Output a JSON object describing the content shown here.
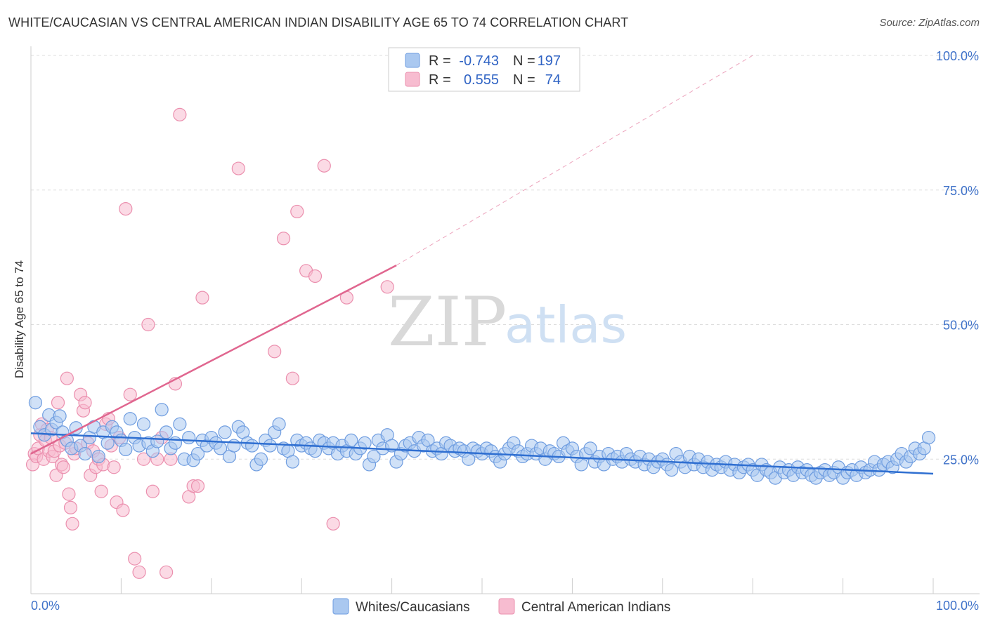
{
  "title": "WHITE/CAUCASIAN VS CENTRAL AMERICAN INDIAN DISABILITY AGE 65 TO 74 CORRELATION CHART",
  "source": "Source: ZipAtlas.com",
  "colors": {
    "blue_fill": "#aac8f0",
    "blue_stroke": "#6f9de0",
    "blue_line": "#2f6fd1",
    "pink_fill": "#f7bcd0",
    "pink_stroke": "#eb8fae",
    "pink_line": "#e0668f",
    "grid": "#dddddd",
    "tick": "#3f72c9"
  },
  "legend": {
    "rows": [
      {
        "r_label": "R =",
        "r_value": "-0.743",
        "n_label": "N =",
        "n_value": "197"
      },
      {
        "r_label": "R =",
        "r_value": "0.555",
        "n_label": "N =",
        "n_value": "74"
      }
    ]
  },
  "watermark": {
    "zip": "ZIP",
    "atlas": "atlas"
  },
  "chart_data": {
    "type": "scatter",
    "title": "WHITE/CAUCASIAN VS CENTRAL AMERICAN INDIAN DISABILITY AGE 65 TO 74 CORRELATION CHART",
    "xlabel": "",
    "ylabel": "Disability Age 65 to 74",
    "xlim": [
      0,
      100
    ],
    "ylim": [
      0,
      100
    ],
    "x_tick_labels": [
      "0.0%",
      "100.0%"
    ],
    "y_ticks": [
      {
        "value": 25,
        "label": "25.0%"
      },
      {
        "value": 50,
        "label": "50.0%"
      },
      {
        "value": 75,
        "label": "75.0%"
      },
      {
        "value": 100,
        "label": "100.0%"
      }
    ],
    "legend_position": "top-center",
    "series": [
      {
        "name": "Whites/Caucasians",
        "color": "#aac8f0",
        "trend": {
          "x": [
            0,
            100
          ],
          "y": [
            29.8,
            22.3
          ],
          "dashed_extension": false
        },
        "points": [
          [
            0.5,
            35.5
          ],
          [
            1.0,
            31.0
          ],
          [
            1.5,
            29.5
          ],
          [
            2.0,
            33.2
          ],
          [
            2.3,
            30.5
          ],
          [
            2.8,
            31.8
          ],
          [
            3.2,
            33.0
          ],
          [
            3.5,
            30.0
          ],
          [
            4.0,
            28.5
          ],
          [
            4.5,
            27.0
          ],
          [
            5.0,
            30.8
          ],
          [
            5.5,
            27.5
          ],
          [
            6.0,
            26.0
          ],
          [
            6.5,
            29.0
          ],
          [
            7.0,
            31.0
          ],
          [
            7.5,
            25.5
          ],
          [
            8.0,
            30.0
          ],
          [
            8.5,
            28.0
          ],
          [
            9.0,
            31.0
          ],
          [
            9.5,
            30.0
          ],
          [
            10.0,
            28.5
          ],
          [
            10.5,
            26.8
          ],
          [
            11.0,
            32.5
          ],
          [
            11.5,
            29.0
          ],
          [
            12.0,
            27.5
          ],
          [
            12.5,
            31.5
          ],
          [
            13.0,
            28.0
          ],
          [
            13.5,
            26.5
          ],
          [
            14.0,
            28.3
          ],
          [
            14.5,
            34.2
          ],
          [
            15.0,
            30.0
          ],
          [
            15.5,
            27.0
          ],
          [
            16.0,
            28.0
          ],
          [
            16.5,
            31.5
          ],
          [
            17.0,
            25.0
          ],
          [
            17.5,
            29.0
          ],
          [
            18.0,
            24.8
          ],
          [
            18.5,
            26.0
          ],
          [
            19.0,
            28.5
          ],
          [
            19.5,
            27.5
          ],
          [
            20.0,
            29.0
          ],
          [
            20.5,
            28.0
          ],
          [
            21.0,
            27.0
          ],
          [
            21.5,
            30.0
          ],
          [
            22.0,
            25.5
          ],
          [
            22.5,
            27.5
          ],
          [
            23.0,
            31.0
          ],
          [
            23.5,
            30.0
          ],
          [
            24.0,
            28.0
          ],
          [
            24.5,
            27.5
          ],
          [
            25.0,
            24.0
          ],
          [
            25.5,
            25.0
          ],
          [
            26.0,
            28.5
          ],
          [
            26.5,
            27.5
          ],
          [
            27.0,
            30.0
          ],
          [
            27.5,
            31.5
          ],
          [
            28.0,
            27.0
          ],
          [
            28.5,
            26.5
          ],
          [
            29.0,
            24.5
          ],
          [
            29.5,
            28.5
          ],
          [
            30.0,
            27.5
          ],
          [
            30.5,
            28.0
          ],
          [
            31.0,
            27.0
          ],
          [
            31.5,
            26.5
          ],
          [
            32.0,
            28.5
          ],
          [
            32.5,
            28.0
          ],
          [
            33.0,
            27.0
          ],
          [
            33.5,
            28.0
          ],
          [
            34.0,
            26.0
          ],
          [
            34.5,
            27.5
          ],
          [
            35.0,
            26.5
          ],
          [
            35.5,
            28.5
          ],
          [
            36.0,
            26.0
          ],
          [
            36.5,
            27.0
          ],
          [
            37.0,
            28.0
          ],
          [
            37.5,
            24.0
          ],
          [
            38.0,
            25.5
          ],
          [
            38.5,
            28.5
          ],
          [
            39.0,
            27.0
          ],
          [
            39.5,
            29.5
          ],
          [
            40.0,
            27.5
          ],
          [
            40.5,
            24.5
          ],
          [
            41.0,
            26.0
          ],
          [
            41.5,
            27.5
          ],
          [
            42.0,
            28.0
          ],
          [
            42.5,
            26.5
          ],
          [
            43.0,
            29.0
          ],
          [
            43.5,
            27.5
          ],
          [
            44.0,
            28.5
          ],
          [
            44.5,
            26.5
          ],
          [
            45.0,
            27.0
          ],
          [
            45.5,
            26.0
          ],
          [
            46.0,
            28.0
          ],
          [
            46.5,
            27.5
          ],
          [
            47.0,
            26.5
          ],
          [
            47.5,
            27.0
          ],
          [
            48.0,
            26.5
          ],
          [
            48.5,
            25.0
          ],
          [
            49.0,
            27.0
          ],
          [
            49.5,
            26.5
          ],
          [
            50.0,
            26.0
          ],
          [
            50.5,
            27.0
          ],
          [
            51.0,
            26.5
          ],
          [
            51.5,
            25.5
          ],
          [
            52.0,
            24.5
          ],
          [
            52.5,
            26.0
          ],
          [
            53.0,
            27.0
          ],
          [
            53.5,
            28.0
          ],
          [
            54.0,
            26.5
          ],
          [
            54.5,
            25.5
          ],
          [
            55.0,
            26.0
          ],
          [
            55.5,
            27.5
          ],
          [
            56.0,
            26.0
          ],
          [
            56.5,
            27.0
          ],
          [
            57.0,
            25.0
          ],
          [
            57.5,
            26.5
          ],
          [
            58.0,
            26.0
          ],
          [
            58.5,
            25.5
          ],
          [
            59.0,
            28.0
          ],
          [
            59.5,
            26.5
          ],
          [
            60.0,
            27.0
          ],
          [
            60.5,
            25.5
          ],
          [
            61.0,
            24.0
          ],
          [
            61.5,
            26.0
          ],
          [
            62.0,
            27.0
          ],
          [
            62.5,
            24.5
          ],
          [
            63.0,
            25.5
          ],
          [
            63.5,
            24.0
          ],
          [
            64.0,
            26.0
          ],
          [
            64.5,
            25.0
          ],
          [
            65.0,
            25.5
          ],
          [
            65.5,
            24.5
          ],
          [
            66.0,
            26.0
          ],
          [
            66.5,
            25.0
          ],
          [
            67.0,
            24.5
          ],
          [
            67.5,
            25.5
          ],
          [
            68.0,
            24.0
          ],
          [
            68.5,
            25.0
          ],
          [
            69.0,
            23.5
          ],
          [
            69.5,
            24.5
          ],
          [
            70.0,
            25.0
          ],
          [
            70.5,
            24.0
          ],
          [
            71.0,
            23.0
          ],
          [
            71.5,
            26.0
          ],
          [
            72.0,
            24.5
          ],
          [
            72.5,
            23.5
          ],
          [
            73.0,
            25.5
          ],
          [
            73.5,
            24.0
          ],
          [
            74.0,
            25.0
          ],
          [
            74.5,
            23.5
          ],
          [
            75.0,
            24.5
          ],
          [
            75.5,
            23.0
          ],
          [
            76.0,
            24.0
          ],
          [
            76.5,
            23.5
          ],
          [
            77.0,
            24.5
          ],
          [
            77.5,
            23.0
          ],
          [
            78.0,
            24.0
          ],
          [
            78.5,
            22.5
          ],
          [
            79.0,
            23.5
          ],
          [
            79.5,
            24.0
          ],
          [
            80.0,
            23.0
          ],
          [
            80.5,
            22.0
          ],
          [
            81.0,
            24.0
          ],
          [
            81.5,
            23.0
          ],
          [
            82.0,
            22.5
          ],
          [
            82.5,
            21.5
          ],
          [
            83.0,
            23.5
          ],
          [
            83.5,
            22.5
          ],
          [
            84.0,
            23.0
          ],
          [
            84.5,
            22.0
          ],
          [
            85.0,
            23.5
          ],
          [
            85.5,
            22.5
          ],
          [
            86.0,
            23.0
          ],
          [
            86.5,
            22.0
          ],
          [
            87.0,
            21.5
          ],
          [
            87.5,
            22.5
          ],
          [
            88.0,
            23.0
          ],
          [
            88.5,
            22.0
          ],
          [
            89.0,
            22.5
          ],
          [
            89.5,
            23.5
          ],
          [
            90.0,
            21.5
          ],
          [
            90.5,
            22.5
          ],
          [
            91.0,
            23.0
          ],
          [
            91.5,
            22.0
          ],
          [
            92.0,
            23.5
          ],
          [
            92.5,
            22.5
          ],
          [
            93.0,
            23.0
          ],
          [
            93.5,
            24.5
          ],
          [
            94.0,
            23.0
          ],
          [
            94.5,
            24.0
          ],
          [
            95.0,
            24.5
          ],
          [
            95.5,
            23.5
          ],
          [
            96.0,
            25.0
          ],
          [
            96.5,
            26.0
          ],
          [
            97.0,
            24.5
          ],
          [
            97.5,
            25.5
          ],
          [
            98.0,
            27.0
          ],
          [
            98.5,
            26.0
          ],
          [
            99.0,
            27.0
          ],
          [
            99.5,
            29.0
          ]
        ]
      },
      {
        "name": "Central American Indians",
        "color": "#f7bcd0",
        "trend": {
          "x": [
            0,
            40.5
          ],
          "y": [
            26.0,
            61.0
          ],
          "dashed_extension": true,
          "extension_end": [
            80,
            100
          ]
        },
        "points": [
          [
            0.2,
            24.0
          ],
          [
            0.4,
            26.0
          ],
          [
            0.6,
            25.5
          ],
          [
            0.8,
            27.0
          ],
          [
            1.0,
            29.5
          ],
          [
            1.2,
            31.5
          ],
          [
            1.4,
            25.0
          ],
          [
            1.6,
            28.5
          ],
          [
            1.8,
            30.5
          ],
          [
            2.0,
            26.5
          ],
          [
            2.2,
            29.0
          ],
          [
            2.4,
            25.5
          ],
          [
            2.6,
            26.5
          ],
          [
            2.8,
            22.0
          ],
          [
            3.0,
            35.5
          ],
          [
            3.2,
            27.5
          ],
          [
            3.4,
            24.0
          ],
          [
            3.6,
            23.5
          ],
          [
            3.8,
            28.0
          ],
          [
            4.0,
            40.0
          ],
          [
            4.2,
            18.5
          ],
          [
            4.4,
            16.0
          ],
          [
            4.6,
            13.0
          ],
          [
            4.8,
            26.0
          ],
          [
            5.0,
            27.0
          ],
          [
            5.5,
            37.0
          ],
          [
            5.8,
            34.0
          ],
          [
            6.0,
            35.5
          ],
          [
            6.3,
            28.0
          ],
          [
            6.6,
            22.0
          ],
          [
            6.9,
            26.5
          ],
          [
            7.2,
            23.5
          ],
          [
            7.5,
            25.0
          ],
          [
            7.8,
            19.0
          ],
          [
            8.0,
            24.0
          ],
          [
            8.3,
            31.5
          ],
          [
            8.6,
            32.5
          ],
          [
            8.9,
            27.5
          ],
          [
            9.2,
            23.5
          ],
          [
            9.5,
            17.0
          ],
          [
            9.8,
            29.0
          ],
          [
            10.2,
            15.5
          ],
          [
            10.5,
            71.5
          ],
          [
            11.0,
            37.0
          ],
          [
            11.5,
            6.5
          ],
          [
            12.0,
            4.0
          ],
          [
            12.5,
            25.0
          ],
          [
            13.0,
            50.0
          ],
          [
            13.5,
            19.0
          ],
          [
            14.0,
            25.0
          ],
          [
            14.5,
            29.0
          ],
          [
            15.0,
            4.0
          ],
          [
            15.5,
            25.0
          ],
          [
            16.0,
            39.0
          ],
          [
            16.5,
            89.0
          ],
          [
            17.5,
            18.0
          ],
          [
            18.0,
            20.0
          ],
          [
            18.5,
            20.0
          ],
          [
            19.0,
            55.0
          ],
          [
            23.0,
            79.0
          ],
          [
            27.0,
            45.0
          ],
          [
            28.0,
            66.0
          ],
          [
            29.0,
            40.0
          ],
          [
            29.5,
            71.0
          ],
          [
            30.5,
            60.0
          ],
          [
            31.5,
            59.0
          ],
          [
            32.5,
            79.5
          ],
          [
            33.5,
            13.0
          ],
          [
            35.0,
            55.0
          ],
          [
            39.5,
            57.0
          ]
        ]
      }
    ]
  }
}
